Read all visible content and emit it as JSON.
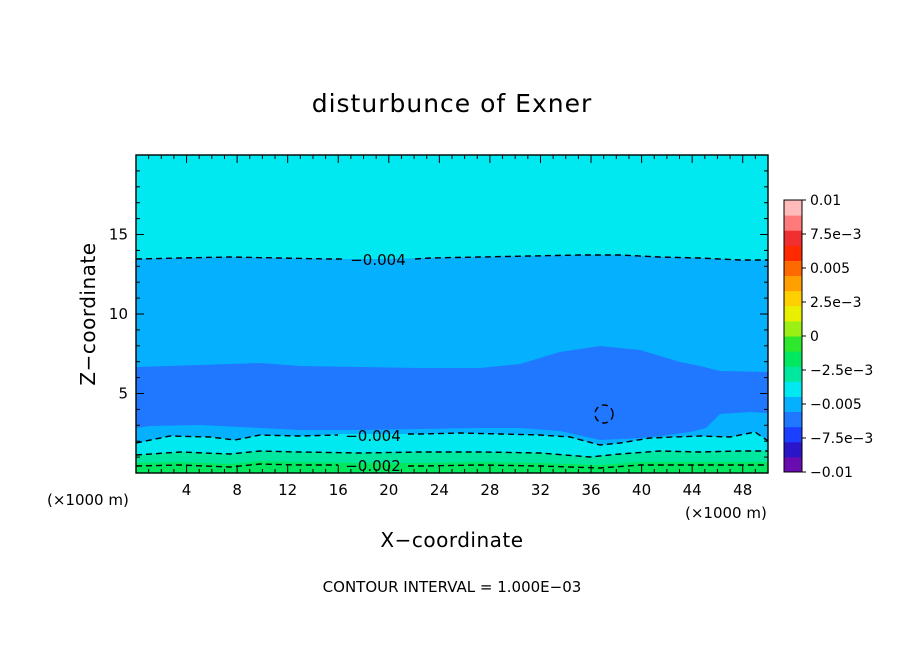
{
  "chart_data": {
    "type": "heatmap",
    "title": "disturbunce of Exner",
    "xlabel": "X−coordinate",
    "ylabel": "Z−coordinate",
    "x_unit_left": "(×1000 m)",
    "x_unit_right": "(×1000 m)",
    "footer": "CONTOUR INTERVAL = 1.000E−03",
    "xlim": [
      0,
      50
    ],
    "ylim": [
      0,
      20
    ],
    "x_ticks": [
      4,
      8,
      12,
      16,
      20,
      24,
      28,
      32,
      36,
      40,
      44,
      48
    ],
    "y_ticks": [
      5,
      10,
      15
    ],
    "colorbar": {
      "range": [
        -0.01,
        0.01
      ],
      "labels": [
        {
          "value": 0.01,
          "text": "0.01"
        },
        {
          "value": 0.0075,
          "text": "7.5e−3"
        },
        {
          "value": 0.005,
          "text": "0.005"
        },
        {
          "value": 0.0025,
          "text": "2.5e−3"
        },
        {
          "value": 0,
          "text": "0"
        },
        {
          "value": -0.0025,
          "text": "−2.5e−3"
        },
        {
          "value": -0.005,
          "text": "−0.005"
        },
        {
          "value": -0.0075,
          "text": "−7.5e−3"
        },
        {
          "value": -0.01,
          "text": "−0.01"
        }
      ],
      "colors": [
        "#6a0db0",
        "#2a16c8",
        "#1c40ff",
        "#1f78ff",
        "#05b0ff",
        "#00e8f0",
        "#00e8a0",
        "#00e860",
        "#2ee82e",
        "#9aef14",
        "#e8f000",
        "#ffd000",
        "#ffa000",
        "#ff6a00",
        "#ff2a00",
        "#f03030",
        "#ff7a7a",
        "#ffbaba"
      ]
    },
    "contour_labels": [
      {
        "text": "−0.004",
        "x": 19.2,
        "z": 13.5
      },
      {
        "text": "−0.004",
        "x": 19.0,
        "z": 2.3
      },
      {
        "text": "−0.002",
        "x": 19.0,
        "z": 0.35
      }
    ],
    "regions": [
      {
        "level": "-0.003",
        "color": "#00e8f0"
      },
      {
        "level": "-0.004",
        "color": "#05b0ff"
      },
      {
        "level": "-0.005",
        "color": "#1f78ff"
      },
      {
        "level": "-0.002",
        "color": "#00e8a0"
      },
      {
        "level": "-0.001",
        "color": "#00e860"
      }
    ]
  }
}
